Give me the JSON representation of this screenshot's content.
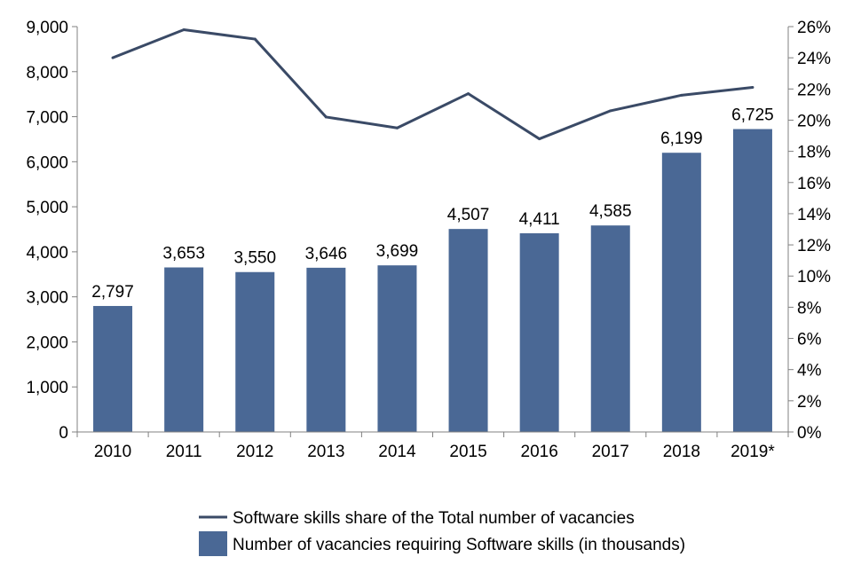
{
  "chart_data": {
    "type": "bar",
    "categories": [
      "2010",
      "2011",
      "2012",
      "2013",
      "2014",
      "2015",
      "2016",
      "2017",
      "2018",
      "2019*"
    ],
    "series": [
      {
        "name": "Number of vacancies requiring Software skills (in thousands)",
        "type": "bar",
        "axis": "left",
        "color": "#4a6895",
        "values": [
          2797,
          3653,
          3550,
          3646,
          3699,
          4507,
          4411,
          4585,
          6199,
          6725
        ],
        "data_labels": [
          "2,797",
          "3,653",
          "3,550",
          "3,646",
          "3,699",
          "4,507",
          "4,411",
          "4,585",
          "6,199",
          "6,725"
        ]
      },
      {
        "name": "Software skills share of the Total number of vacancies",
        "type": "line",
        "axis": "right",
        "color": "#3a4a66",
        "values": [
          24.0,
          25.8,
          25.2,
          20.2,
          19.5,
          21.7,
          18.8,
          20.6,
          21.6,
          22.1
        ]
      }
    ],
    "y_left": {
      "range": [
        0,
        9000
      ],
      "ticks": [
        0,
        1000,
        2000,
        3000,
        4000,
        5000,
        6000,
        7000,
        8000,
        9000
      ],
      "tick_labels": [
        "0",
        "1,000",
        "2,000",
        "3,000",
        "4,000",
        "5,000",
        "6,000",
        "7,000",
        "8,000",
        "9,000"
      ]
    },
    "y_right": {
      "range": [
        0,
        26
      ],
      "ticks": [
        0,
        2,
        4,
        6,
        8,
        10,
        12,
        14,
        16,
        18,
        20,
        22,
        24,
        26
      ],
      "tick_labels": [
        "0%",
        "2%",
        "4%",
        "6%",
        "8%",
        "10%",
        "12%",
        "14%",
        "16%",
        "18%",
        "20%",
        "22%",
        "24%",
        "26%"
      ]
    },
    "grid": false,
    "legend_position": "bottom-center"
  }
}
